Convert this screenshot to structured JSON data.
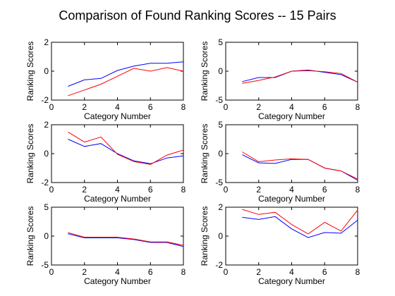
{
  "title": "Comparison of Found Ranking Scores -- 15 Pairs",
  "colors": {
    "series_a": "#0000ff",
    "series_b": "#ff0000",
    "axes": "#000000",
    "background": "#ffffff"
  },
  "chart_data": [
    {
      "type": "line",
      "title": "Comparison of Found Ranking Scores -- 15 Pairs",
      "xlabel": "Category Number",
      "ylabel": "Ranking Scores",
      "xlim": [
        0,
        8
      ],
      "ylim": [
        -2,
        2
      ],
      "xticks": [
        "0",
        "2",
        "4",
        "6",
        "8"
      ],
      "yticks": [
        "-2",
        "0",
        "2"
      ],
      "grid": false,
      "x": [
        1,
        2,
        3,
        4,
        5,
        6,
        7,
        8
      ],
      "series": [
        {
          "color": "#0000ff",
          "values": [
            -1.05,
            -0.6,
            -0.5,
            0.05,
            0.35,
            0.55,
            0.55,
            0.65
          ]
        },
        {
          "color": "#ff0000",
          "values": [
            -1.7,
            -1.3,
            -0.9,
            -0.35,
            0.2,
            0.0,
            0.25,
            0.0
          ]
        }
      ]
    },
    {
      "type": "line",
      "xlabel": "Category Number",
      "ylabel": "Ranking Scores",
      "xlim": [
        0,
        8
      ],
      "ylim": [
        -5,
        5
      ],
      "xticks": [
        "0",
        "2",
        "4",
        "6",
        "8"
      ],
      "yticks": [
        "-5",
        "0",
        "5"
      ],
      "grid": false,
      "x": [
        1,
        2,
        3,
        4,
        5,
        6,
        7,
        8
      ],
      "series": [
        {
          "color": "#0000ff",
          "values": [
            -1.8,
            -1.1,
            -1.1,
            0.0,
            0.2,
            -0.2,
            -0.6,
            -1.9
          ]
        },
        {
          "color": "#ff0000",
          "values": [
            -2.1,
            -1.6,
            -1.0,
            0.0,
            0.1,
            -0.1,
            -0.4,
            -1.9
          ]
        }
      ]
    },
    {
      "type": "line",
      "xlabel": "Category Number",
      "ylabel": "Ranking Scores",
      "xlim": [
        0,
        8
      ],
      "ylim": [
        -2,
        2
      ],
      "xticks": [
        "0",
        "2",
        "4",
        "6",
        "8"
      ],
      "yticks": [
        "-2",
        "0",
        "2"
      ],
      "grid": false,
      "x": [
        1,
        2,
        3,
        4,
        5,
        6,
        7,
        8
      ],
      "series": [
        {
          "color": "#0000ff",
          "values": [
            1.0,
            0.5,
            0.7,
            0.0,
            -0.5,
            -0.7,
            -0.3,
            -0.15
          ]
        },
        {
          "color": "#ff0000",
          "values": [
            1.5,
            0.8,
            1.15,
            -0.05,
            -0.55,
            -0.75,
            -0.1,
            0.25
          ]
        }
      ]
    },
    {
      "type": "line",
      "xlabel": "Category Number",
      "ylabel": "Ranking Scores",
      "xlim": [
        0,
        8
      ],
      "ylim": [
        -5,
        5
      ],
      "xticks": [
        "0",
        "2",
        "4",
        "6",
        "8"
      ],
      "yticks": [
        "-5",
        "0",
        "5"
      ],
      "grid": false,
      "x": [
        1,
        2,
        3,
        4,
        5,
        6,
        7,
        8
      ],
      "series": [
        {
          "color": "#0000ff",
          "values": [
            -0.2,
            -1.6,
            -1.7,
            -1.0,
            -1.0,
            -2.5,
            -3.0,
            -4.6
          ]
        },
        {
          "color": "#ff0000",
          "values": [
            0.3,
            -1.4,
            -1.1,
            -0.9,
            -1.0,
            -2.5,
            -3.0,
            -4.4
          ]
        }
      ]
    },
    {
      "type": "line",
      "xlabel": "Category Number",
      "ylabel": "Ranking Scores",
      "xlim": [
        0,
        8
      ],
      "ylim": [
        -5,
        5
      ],
      "xticks": [
        "0",
        "2",
        "4",
        "6",
        "8"
      ],
      "yticks": [
        "-5",
        "0",
        "5"
      ],
      "grid": false,
      "x": [
        1,
        2,
        3,
        4,
        5,
        6,
        7,
        8
      ],
      "series": [
        {
          "color": "#0000ff",
          "values": [
            0.4,
            -0.3,
            -0.3,
            -0.3,
            -0.6,
            -1.1,
            -1.1,
            -1.8
          ]
        },
        {
          "color": "#ff0000",
          "values": [
            0.6,
            -0.2,
            -0.2,
            -0.2,
            -0.5,
            -1.0,
            -1.0,
            -1.6
          ]
        }
      ]
    },
    {
      "type": "line",
      "xlabel": "Category Number",
      "ylabel": "Ranking Scores",
      "xlim": [
        0,
        8
      ],
      "ylim": [
        -2,
        2
      ],
      "xticks": [
        "0",
        "2",
        "4",
        "6",
        "8"
      ],
      "yticks": [
        "-2",
        "0",
        "2"
      ],
      "grid": false,
      "x": [
        1,
        2,
        3,
        4,
        5,
        6,
        7,
        8
      ],
      "series": [
        {
          "color": "#0000ff",
          "values": [
            1.3,
            1.15,
            1.35,
            0.5,
            -0.1,
            0.25,
            0.2,
            1.1
          ]
        },
        {
          "color": "#ff0000",
          "values": [
            1.85,
            1.5,
            1.65,
            0.8,
            0.15,
            0.95,
            0.35,
            1.8
          ]
        }
      ]
    }
  ]
}
